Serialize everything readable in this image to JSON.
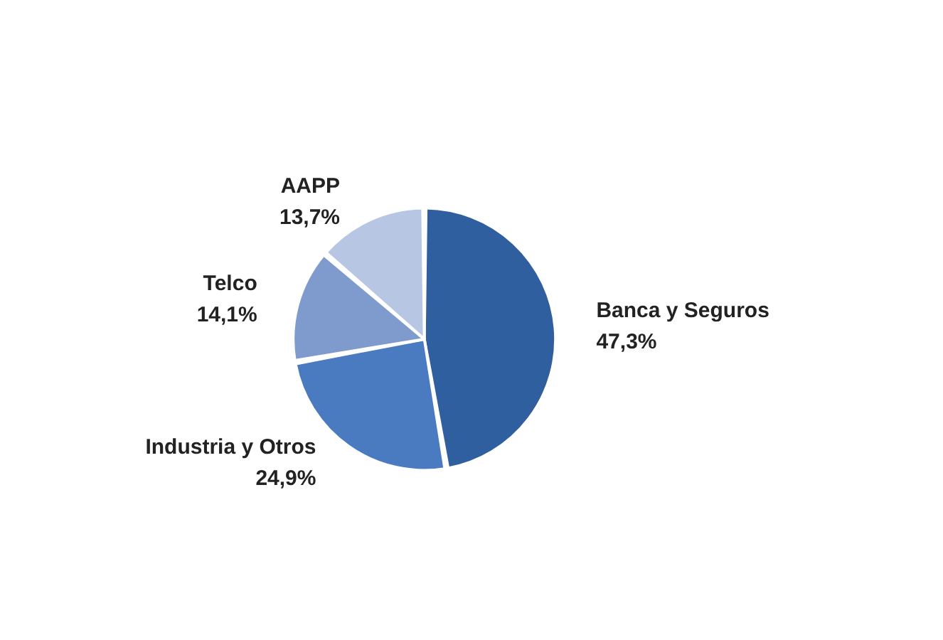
{
  "chart_data": {
    "type": "pie",
    "categories": [
      "Banca y Seguros",
      "Industria y Otros",
      "Telco",
      "AAPP"
    ],
    "values": [
      47.3,
      24.9,
      14.1,
      13.7
    ],
    "colors": [
      "#2f5f9e",
      "#4a7bc0",
      "#7f9bcd",
      "#b7c6e3"
    ],
    "value_labels": [
      "47,3%",
      "24,9%",
      "14,1%",
      "13,7%"
    ]
  }
}
